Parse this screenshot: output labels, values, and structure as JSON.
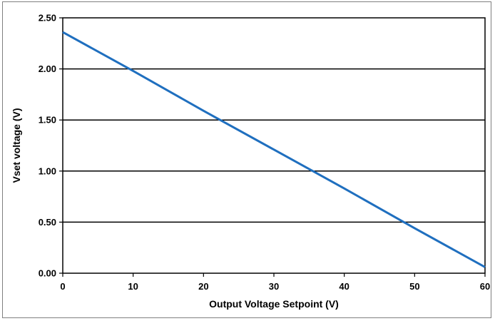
{
  "chart_data": {
    "type": "line",
    "title": "",
    "xlabel": "Output Voltage Setpoint (V)",
    "ylabel": "Vset voltage (V)",
    "xlim": [
      0,
      60
    ],
    "ylim": [
      0,
      2.5
    ],
    "x_ticks": [
      "0",
      "10",
      "20",
      "30",
      "40",
      "50",
      "60"
    ],
    "y_ticks": [
      "0.00",
      "0.50",
      "1.00",
      "1.50",
      "2.00",
      "2.50"
    ],
    "x_tick_values": [
      0,
      10,
      20,
      30,
      40,
      50,
      60
    ],
    "y_tick_values": [
      0,
      0.5,
      1.0,
      1.5,
      2.0,
      2.5
    ],
    "grid": "horizontal",
    "legend": "none",
    "series": [
      {
        "color": "#1f6fbf",
        "x": [
          0,
          10,
          20,
          30,
          40,
          50,
          60
        ],
        "y": [
          2.36,
          1.98,
          1.59,
          1.21,
          0.83,
          0.44,
          0.06
        ]
      }
    ]
  }
}
